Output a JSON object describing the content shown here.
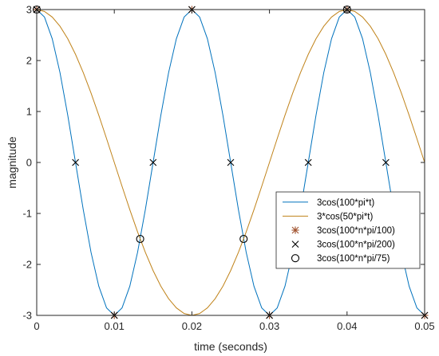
{
  "chart_data": {
    "type": "line",
    "title": "",
    "xlabel": "time (seconds)",
    "ylabel": "magnitude",
    "xlim": [
      0,
      0.05
    ],
    "ylim": [
      -3,
      3
    ],
    "xticks": [
      "0",
      "0.01",
      "0.02",
      "0.03",
      "0.04",
      "0.05"
    ],
    "yticks": [
      "-3",
      "-2",
      "-1",
      "0",
      "1",
      "2",
      "3"
    ],
    "grid": false,
    "legend_position": "right",
    "series": [
      {
        "name": "3cos(100*pi*t)",
        "kind": "line",
        "color": "#0072BD",
        "x": [
          0,
          0.001,
          0.002,
          0.003,
          0.004,
          0.005,
          0.006,
          0.007,
          0.008,
          0.009,
          0.01,
          0.011,
          0.012,
          0.013,
          0.014,
          0.015,
          0.016,
          0.017,
          0.018,
          0.019,
          0.02,
          0.021,
          0.022,
          0.023,
          0.024,
          0.025,
          0.026,
          0.027,
          0.028,
          0.029,
          0.03,
          0.031,
          0.032,
          0.033,
          0.034,
          0.035,
          0.036,
          0.037,
          0.038,
          0.039,
          0.04,
          0.041,
          0.042,
          0.043,
          0.044,
          0.045,
          0.046,
          0.047,
          0.048,
          0.049,
          0.05
        ],
        "y": [
          3,
          2.853,
          2.427,
          1.763,
          0.927,
          0,
          -0.927,
          -1.763,
          -2.427,
          -2.853,
          -3,
          -2.853,
          -2.427,
          -1.763,
          -0.927,
          0,
          0.927,
          1.763,
          2.427,
          2.853,
          3,
          2.853,
          2.427,
          1.763,
          0.927,
          0,
          -0.927,
          -1.763,
          -2.427,
          -2.853,
          -3,
          -2.853,
          -2.427,
          -1.763,
          -0.927,
          0,
          0.927,
          1.763,
          2.427,
          2.853,
          3,
          2.853,
          2.427,
          1.763,
          0.927,
          0,
          -0.927,
          -1.763,
          -2.427,
          -2.853,
          -3
        ]
      },
      {
        "name": "3*cos(50*pi*t)",
        "kind": "line",
        "color": "#C0831A",
        "x": [
          0,
          0.001,
          0.002,
          0.003,
          0.004,
          0.005,
          0.006,
          0.007,
          0.008,
          0.009,
          0.01,
          0.011,
          0.012,
          0.013,
          0.014,
          0.015,
          0.016,
          0.017,
          0.018,
          0.019,
          0.02,
          0.021,
          0.022,
          0.023,
          0.024,
          0.025,
          0.026,
          0.027,
          0.028,
          0.029,
          0.03,
          0.031,
          0.032,
          0.033,
          0.034,
          0.035,
          0.036,
          0.037,
          0.038,
          0.039,
          0.04,
          0.041,
          0.042,
          0.043,
          0.044,
          0.045,
          0.046,
          0.047,
          0.048,
          0.049,
          0.05
        ],
        "y": [
          3,
          2.963,
          2.853,
          2.673,
          2.427,
          2.121,
          1.763,
          1.362,
          0.927,
          0.469,
          0,
          -0.469,
          -0.927,
          -1.362,
          -1.763,
          -2.121,
          -2.427,
          -2.673,
          -2.853,
          -2.963,
          -3,
          -2.963,
          -2.853,
          -2.673,
          -2.427,
          -2.121,
          -1.763,
          -1.362,
          -0.927,
          -0.469,
          0,
          0.469,
          0.927,
          1.362,
          1.763,
          2.121,
          2.427,
          2.673,
          2.853,
          2.963,
          3,
          2.963,
          2.853,
          2.673,
          2.427,
          2.121,
          1.763,
          1.362,
          0.927,
          0.469,
          0
        ]
      },
      {
        "name": "3cos(100*n*pi/100)",
        "kind": "marker",
        "marker": "asterisk",
        "color": "#A0522D",
        "x": [
          0,
          0.01,
          0.02,
          0.03,
          0.04,
          0.05
        ],
        "y": [
          3,
          -3,
          3,
          -3,
          3,
          -3
        ]
      },
      {
        "name": "3cos(100*n*pi/200)",
        "kind": "marker",
        "marker": "x",
        "color": "#000000",
        "x": [
          0,
          0.005,
          0.01,
          0.015,
          0.02,
          0.025,
          0.03,
          0.035,
          0.04,
          0.045,
          0.05
        ],
        "y": [
          3,
          0,
          -3,
          0,
          3,
          0,
          -3,
          0,
          3,
          0,
          -3
        ]
      },
      {
        "name": "3cos(100*n*pi/75)",
        "kind": "marker",
        "marker": "circle",
        "color": "#000000",
        "x": [
          0,
          0.013333,
          0.026667,
          0.04
        ],
        "y": [
          3,
          -1.5,
          -1.5,
          3
        ]
      }
    ]
  }
}
